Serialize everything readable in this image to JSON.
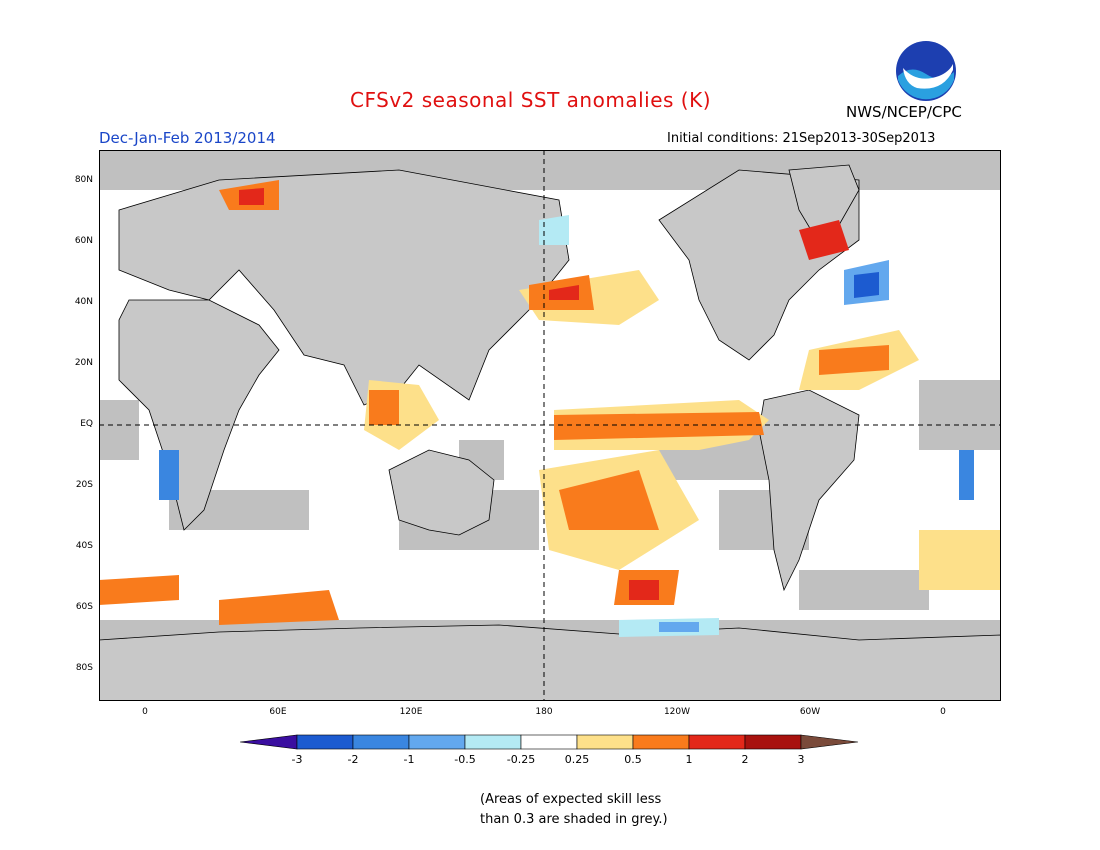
{
  "header": {
    "title": "CFSv2 seasonal SST anomalies (K)",
    "season": "Dec-Jan-Feb 2013/2014",
    "initial_conditions": "Initial conditions: 21Sep2013-30Sep2013",
    "agency": "NWS/NCEP/CPC",
    "logo_text": "NOAA"
  },
  "map": {
    "lat_labels": [
      "80N",
      "60N",
      "40N",
      "20N",
      "EQ",
      "20S",
      "40S",
      "60S",
      "80S"
    ],
    "lon_labels": [
      "0",
      "60E",
      "120E",
      "180",
      "120W",
      "60W",
      "0"
    ],
    "colors": {
      "land": "#c8c8c8",
      "ocean_neutral": "#ffffff",
      "grey_skill_mask": "#c0c0c0"
    }
  },
  "colorbar": {
    "labels": [
      "-3",
      "-2",
      "-1",
      "-0.5",
      "-0.25",
      "0.25",
      "0.5",
      "1",
      "2",
      "3"
    ],
    "colors": [
      "#3a0ea0",
      "#1c5bd0",
      "#3a86e0",
      "#63a8ee",
      "#b4eaf4",
      "#ffffff",
      "#fde08a",
      "#f97b1c",
      "#e3281a",
      "#a8120e",
      "#7a4a3a"
    ]
  },
  "footnote": {
    "line1": "(Areas of expected skill less",
    "line2": "than 0.3 are shaded in grey.)"
  }
}
